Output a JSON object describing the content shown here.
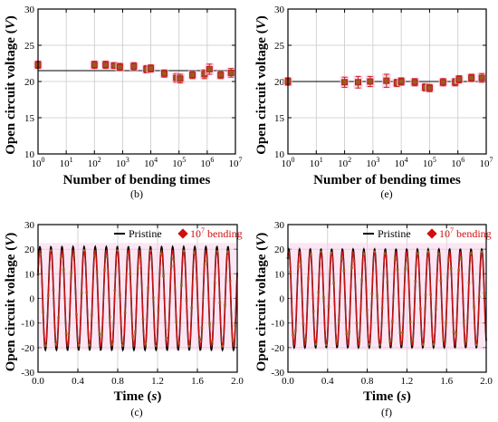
{
  "colors": {
    "reference_line": "#000000",
    "marker_fill": "#9a5a1e",
    "marker_edge": "#c01818",
    "errorbar": "#d02020",
    "errorbar_halo": "#f6c6e2",
    "pristine": "#000000",
    "bending": "#d01010",
    "band": "#f9d2ea",
    "grid": "#c8c8c8"
  },
  "chart_data": [
    {
      "id": "b",
      "type": "scatter",
      "panel_label": "(b)",
      "xlabel": "Number of bending times",
      "ylabel": "Open circuit voltage (V)",
      "xscale": "log",
      "xlim": [
        1,
        10000000
      ],
      "ylim": [
        10,
        30
      ],
      "xticks": [
        "10^0",
        "10^1",
        "10^2",
        "10^3",
        "10^4",
        "10^5",
        "10^6",
        "10^7"
      ],
      "yticks": [
        "10",
        "15",
        "20",
        "25",
        "30"
      ],
      "grid": true,
      "reference_y": 21.5,
      "points": [
        {
          "x": 1,
          "y": 22.3,
          "err": 0.5
        },
        {
          "x": 100,
          "y": 22.3,
          "err": 0.5
        },
        {
          "x": 250,
          "y": 22.3,
          "err": 0.5
        },
        {
          "x": 500,
          "y": 22.2,
          "err": 0.4
        },
        {
          "x": 800,
          "y": 22.0,
          "err": 0.5
        },
        {
          "x": 2500,
          "y": 22.1,
          "err": 0.5
        },
        {
          "x": 7000,
          "y": 21.7,
          "err": 0.5
        },
        {
          "x": 10000,
          "y": 21.8,
          "err": 0.5
        },
        {
          "x": 30000,
          "y": 21.1,
          "err": 0.5
        },
        {
          "x": 80000,
          "y": 20.5,
          "err": 0.6
        },
        {
          "x": 110000,
          "y": 20.4,
          "err": 0.6
        },
        {
          "x": 300000,
          "y": 20.9,
          "err": 0.5
        },
        {
          "x": 800000,
          "y": 21.0,
          "err": 0.6
        },
        {
          "x": 1200000,
          "y": 21.7,
          "err": 0.7
        },
        {
          "x": 3000000,
          "y": 20.9,
          "err": 0.5
        },
        {
          "x": 7000000,
          "y": 21.2,
          "err": 0.6
        }
      ]
    },
    {
      "id": "e",
      "type": "scatter",
      "panel_label": "(e)",
      "xlabel": "Number of bending times",
      "ylabel": "Open circuit voltage (V)",
      "xscale": "log",
      "xlim": [
        1,
        10000000
      ],
      "ylim": [
        10,
        30
      ],
      "xticks": [
        "10^0",
        "10^1",
        "10^2",
        "10^3",
        "10^4",
        "10^5",
        "10^6",
        "10^7"
      ],
      "yticks": [
        "10",
        "15",
        "20",
        "25",
        "30"
      ],
      "grid": true,
      "reference_y": 20.0,
      "points": [
        {
          "x": 1,
          "y": 20.0,
          "err": 0.5
        },
        {
          "x": 100,
          "y": 19.9,
          "err": 0.7
        },
        {
          "x": 300,
          "y": 19.9,
          "err": 0.8
        },
        {
          "x": 800,
          "y": 20.0,
          "err": 0.7
        },
        {
          "x": 3000,
          "y": 20.1,
          "err": 0.9
        },
        {
          "x": 7000,
          "y": 19.8,
          "err": 0.5
        },
        {
          "x": 10000,
          "y": 20.0,
          "err": 0.5
        },
        {
          "x": 30000,
          "y": 19.9,
          "err": 0.5
        },
        {
          "x": 70000,
          "y": 19.2,
          "err": 0.5
        },
        {
          "x": 100000,
          "y": 19.1,
          "err": 0.5
        },
        {
          "x": 300000,
          "y": 19.9,
          "err": 0.5
        },
        {
          "x": 800000,
          "y": 19.9,
          "err": 0.5
        },
        {
          "x": 1100000,
          "y": 20.3,
          "err": 0.5
        },
        {
          "x": 3000000,
          "y": 20.5,
          "err": 0.5
        },
        {
          "x": 7000000,
          "y": 20.5,
          "err": 0.6
        }
      ]
    },
    {
      "id": "c",
      "type": "line",
      "panel_label": "(c)",
      "xlabel": "Time (s)",
      "ylabel": "Open circuit voltage (V)",
      "xlim": [
        0.0,
        2.0
      ],
      "ylim": [
        -30,
        30
      ],
      "xticks": [
        "0.0",
        "0.4",
        "0.8",
        "1.2",
        "1.6",
        "2.0"
      ],
      "yticks": [
        "-30",
        "-20",
        "-10",
        "0",
        "10",
        "20",
        "30"
      ],
      "grid": true,
      "legend": {
        "position": "top-right",
        "entries": [
          {
            "label": "Pristine",
            "style": "line"
          },
          {
            "label": "10^7 bending",
            "style": "marker"
          }
        ]
      },
      "series": [
        {
          "name": "Pristine",
          "frequency_hz": 9.0,
          "phase_deg": 30,
          "amplitude": 21,
          "offset": 0
        },
        {
          "name": "10^7 bending",
          "frequency_hz": 9.0,
          "phase_deg": 30,
          "amplitude": 19.5,
          "offset": 0
        }
      ]
    },
    {
      "id": "f",
      "type": "line",
      "panel_label": "(f)",
      "xlabel": "Time (s)",
      "ylabel": "Open circuit voltage (V)",
      "xlim": [
        0.0,
        2.0
      ],
      "ylim": [
        -30,
        30
      ],
      "xticks": [
        "0.0",
        "0.4",
        "0.8",
        "1.2",
        "1.6",
        "2.0"
      ],
      "yticks": [
        "-30",
        "-20",
        "-10",
        "0",
        "10",
        "20",
        "30"
      ],
      "grid": true,
      "legend": {
        "position": "top-right",
        "entries": [
          {
            "label": "Pristine",
            "style": "line"
          },
          {
            "label": "10^7 bending",
            "style": "marker"
          }
        ]
      },
      "series": [
        {
          "name": "Pristine",
          "frequency_hz": 9.25,
          "phase_deg": 60,
          "amplitude": 20,
          "offset": 0
        },
        {
          "name": "10^7 bending",
          "frequency_hz": 9.25,
          "phase_deg": 60,
          "amplitude": 19,
          "offset": 0
        }
      ]
    }
  ]
}
